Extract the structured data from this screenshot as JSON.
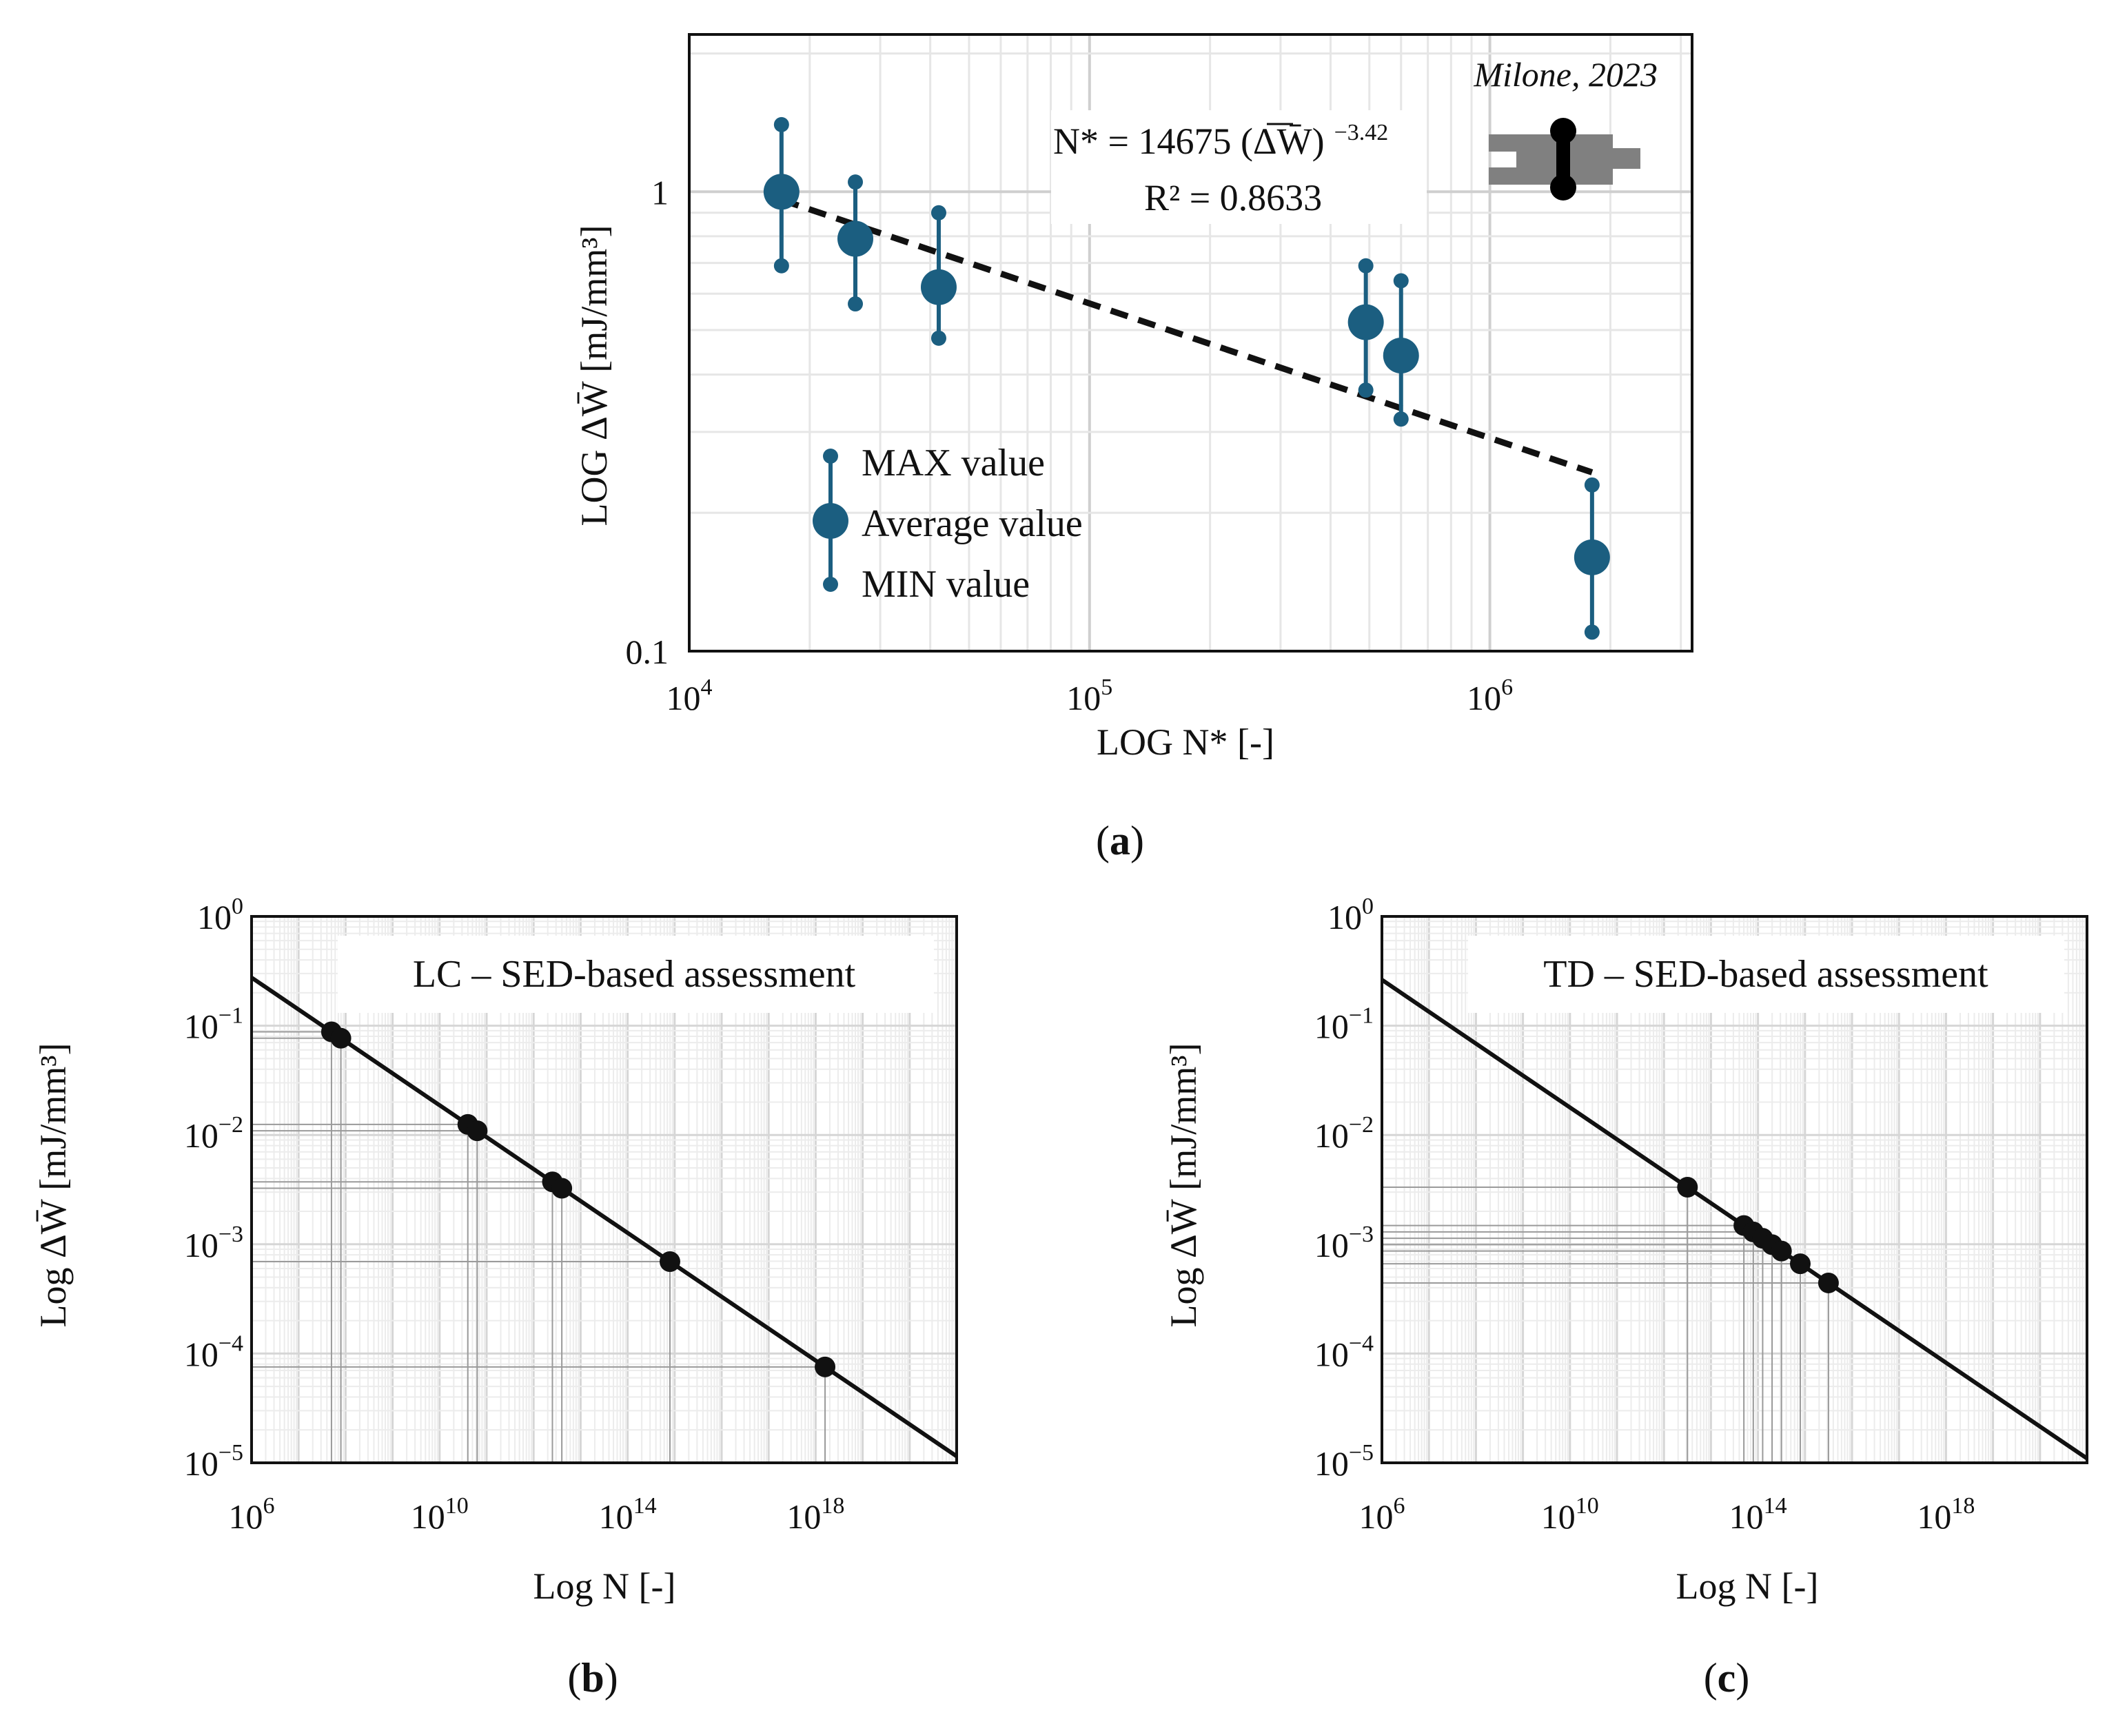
{
  "chart_data": [
    {
      "id": "a",
      "type": "scatter",
      "caption_letter": "a",
      "xlabel": "LOG N* [-]",
      "ylabel": "LOG ΔW̄ [mJ/mm³]",
      "x_scale": "log",
      "y_scale": "log",
      "xlim": [
        10000,
        3200000
      ],
      "ylim": [
        0.1,
        2.2
      ],
      "x_ticks": [
        {
          "value": 10000,
          "base": "10",
          "exp": "4"
        },
        {
          "value": 100000,
          "base": "10",
          "exp": "5"
        },
        {
          "value": 1000000,
          "base": "10",
          "exp": "6"
        }
      ],
      "y_ticks": [
        {
          "value": 0.1,
          "label": "0.1"
        },
        {
          "value": 1,
          "label": "1"
        }
      ],
      "grid": true,
      "credit": "Milone, 2023",
      "color": "#1b5e80",
      "points": [
        {
          "x": 17000,
          "avg": 1.0,
          "max": 1.4,
          "min": 0.69
        },
        {
          "x": 26000,
          "avg": 0.79,
          "max": 1.05,
          "min": 0.57
        },
        {
          "x": 42000,
          "avg": 0.62,
          "max": 0.9,
          "min": 0.48
        },
        {
          "x": 490000,
          "avg": 0.52,
          "max": 0.69,
          "min": 0.37
        },
        {
          "x": 600000,
          "avg": 0.44,
          "max": 0.64,
          "min": 0.32
        },
        {
          "x": 1800000,
          "avg": 0.16,
          "max": 0.23,
          "min": 0.11
        }
      ],
      "trendline": {
        "x": [
          17000,
          1800000
        ],
        "y": [
          0.96,
          0.245
        ],
        "style": "dashed"
      },
      "equation": {
        "prefix": "N* = 14675 (ΔW̄)",
        "exponent": "−3.42"
      },
      "r2": "R² = 0.8633",
      "legend": [
        {
          "marker": "max",
          "label": "MAX value"
        },
        {
          "marker": "avg",
          "label": "Average value"
        },
        {
          "marker": "min",
          "label": "MIN value"
        }
      ]
    },
    {
      "id": "b",
      "type": "line",
      "caption_letter": "b",
      "title": "LC – SED-based assessment",
      "xlabel": "Log N [-]",
      "ylabel": "Log ΔW̄ [mJ/mm³]",
      "x_scale": "log",
      "y_scale": "log",
      "xlim_exp": [
        6,
        21
      ],
      "ylim_exp": [
        -5,
        0
      ],
      "x_ticks": [
        {
          "exp_value": 6,
          "base": "10",
          "exp": "6"
        },
        {
          "exp_value": 10,
          "base": "10",
          "exp": "10"
        },
        {
          "exp_value": 14,
          "base": "10",
          "exp": "14"
        },
        {
          "exp_value": 18,
          "base": "10",
          "exp": "18"
        }
      ],
      "y_ticks": [
        {
          "exp_value": 0,
          "base": "10",
          "exp": "0"
        },
        {
          "exp_value": -1,
          "base": "10",
          "exp": "−1"
        },
        {
          "exp_value": -2,
          "base": "10",
          "exp": "−2"
        },
        {
          "exp_value": -3,
          "base": "10",
          "exp": "−3"
        },
        {
          "exp_value": -4,
          "base": "10",
          "exp": "−4"
        },
        {
          "exp_value": -5,
          "base": "10",
          "exp": "−5"
        }
      ],
      "line": {
        "log_x": [
          6,
          21
        ],
        "log_y": [
          -0.56,
          -4.94
        ]
      },
      "points_log_x": [
        7.7,
        7.9,
        10.6,
        10.8,
        12.4,
        12.6,
        14.9,
        18.2
      ]
    },
    {
      "id": "c",
      "type": "line",
      "caption_letter": "c",
      "title": "TD – SED-based assessment",
      "xlabel": "Log N [-]",
      "ylabel": "Log ΔW̄ [mJ/mm³]",
      "x_scale": "log",
      "y_scale": "log",
      "xlim_exp": [
        6,
        21
      ],
      "ylim_exp": [
        -5,
        0
      ],
      "x_ticks": [
        {
          "exp_value": 6,
          "base": "10",
          "exp": "6"
        },
        {
          "exp_value": 10,
          "base": "10",
          "exp": "10"
        },
        {
          "exp_value": 14,
          "base": "10",
          "exp": "14"
        },
        {
          "exp_value": 18,
          "base": "10",
          "exp": "18"
        }
      ],
      "y_ticks": [
        {
          "exp_value": 0,
          "base": "10",
          "exp": "0"
        },
        {
          "exp_value": -1,
          "base": "10",
          "exp": "−1"
        },
        {
          "exp_value": -2,
          "base": "10",
          "exp": "−2"
        },
        {
          "exp_value": -3,
          "base": "10",
          "exp": "−3"
        },
        {
          "exp_value": -4,
          "base": "10",
          "exp": "−4"
        },
        {
          "exp_value": -5,
          "base": "10",
          "exp": "−5"
        }
      ],
      "line": {
        "log_x": [
          6,
          21
        ],
        "log_y": [
          -0.58,
          -4.96
        ]
      },
      "points_log_x": [
        12.5,
        13.7,
        13.9,
        14.1,
        14.3,
        14.5,
        14.9,
        15.5
      ]
    }
  ]
}
